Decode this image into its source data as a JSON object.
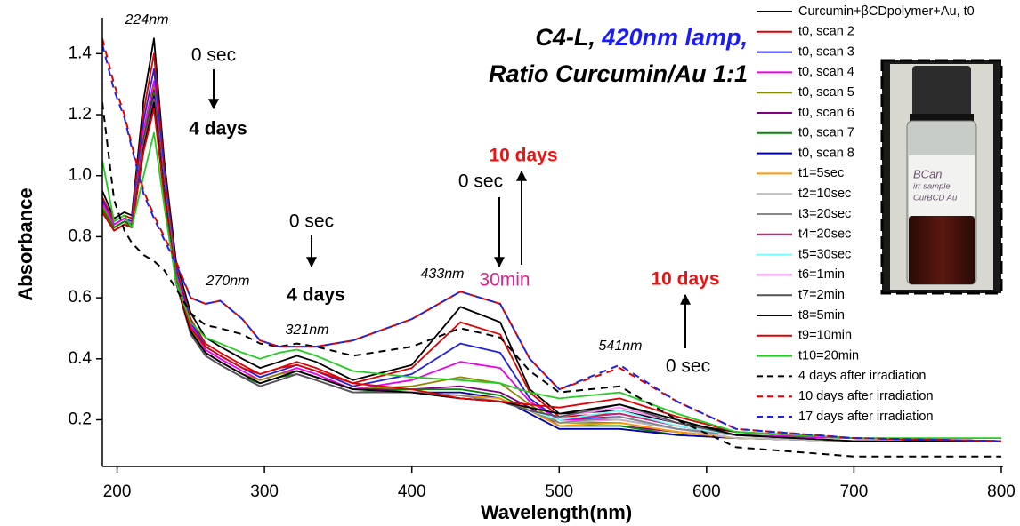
{
  "chart_data": {
    "type": "line",
    "title": [
      "C4-L,",
      "420nm lamp,",
      "Ratio Curcumin/Au 1:1"
    ],
    "title_colors": [
      "#000000",
      "#1a1aff",
      "#000000"
    ],
    "x_label": "Wavelength(nm)",
    "y_label": "Absorbance",
    "xlim": [
      190,
      800
    ],
    "xticks": [
      200,
      300,
      400,
      500,
      600,
      700,
      800
    ],
    "ylim": [
      0.05,
      1.5
    ],
    "yticks": [
      0.2,
      0.4,
      0.6,
      0.8,
      {
        "value": 1,
        "label": "1.0"
      },
      1.2,
      1.4
    ],
    "x": [
      190,
      198,
      205,
      210,
      218,
      225,
      232,
      240,
      250,
      260,
      270,
      285,
      297,
      310,
      322,
      335,
      360,
      400,
      433,
      460,
      480,
      500,
      541,
      580,
      620,
      700,
      800
    ],
    "series": [
      {
        "name": "Curcumin+βCDpolymer+Au, t0",
        "color": "#000000",
        "dash": false,
        "values": [
          0.95,
          0.86,
          0.88,
          0.87,
          1.25,
          1.45,
          1.05,
          0.72,
          0.55,
          0.47,
          0.44,
          0.4,
          0.37,
          0.39,
          0.41,
          0.39,
          0.33,
          0.38,
          0.57,
          0.52,
          0.3,
          0.22,
          0.23,
          0.19,
          0.16,
          0.14,
          0.13
        ]
      },
      {
        "name": "t0, scan 2",
        "color": "#e00000",
        "dash": false,
        "values": [
          0.93,
          0.85,
          0.87,
          0.86,
          1.21,
          1.4,
          1.02,
          0.7,
          0.53,
          0.45,
          0.42,
          0.38,
          0.35,
          0.37,
          0.39,
          0.37,
          0.32,
          0.37,
          0.52,
          0.48,
          0.29,
          0.21,
          0.22,
          0.18,
          0.15,
          0.14,
          0.13
        ]
      },
      {
        "name": "t0, scan 3",
        "color": "#2222dd",
        "dash": false,
        "values": [
          0.92,
          0.84,
          0.86,
          0.85,
          1.18,
          1.35,
          1.0,
          0.69,
          0.52,
          0.44,
          0.41,
          0.37,
          0.34,
          0.36,
          0.38,
          0.36,
          0.31,
          0.35,
          0.45,
          0.42,
          0.27,
          0.2,
          0.21,
          0.17,
          0.15,
          0.14,
          0.13
        ]
      },
      {
        "name": "t0, scan 4",
        "color": "#ee00ee",
        "dash": false,
        "values": [
          0.91,
          0.84,
          0.86,
          0.84,
          1.15,
          1.31,
          0.98,
          0.68,
          0.51,
          0.43,
          0.4,
          0.36,
          0.33,
          0.35,
          0.37,
          0.35,
          0.3,
          0.33,
          0.39,
          0.37,
          0.26,
          0.2,
          0.2,
          0.17,
          0.15,
          0.14,
          0.13
        ]
      },
      {
        "name": "t0, scan 5",
        "color": "#8a8a00",
        "dash": false,
        "values": [
          0.9,
          0.83,
          0.85,
          0.84,
          1.13,
          1.29,
          0.97,
          0.67,
          0.5,
          0.42,
          0.39,
          0.35,
          0.33,
          0.35,
          0.36,
          0.34,
          0.3,
          0.31,
          0.34,
          0.32,
          0.25,
          0.19,
          0.19,
          0.16,
          0.14,
          0.13,
          0.13
        ]
      },
      {
        "name": "t0, scan 6",
        "color": "#800080",
        "dash": false,
        "values": [
          0.89,
          0.83,
          0.85,
          0.84,
          1.12,
          1.28,
          0.96,
          0.66,
          0.49,
          0.42,
          0.39,
          0.35,
          0.32,
          0.34,
          0.36,
          0.34,
          0.3,
          0.3,
          0.31,
          0.29,
          0.24,
          0.18,
          0.18,
          0.16,
          0.14,
          0.13,
          0.13
        ]
      },
      {
        "name": "t0, scan 7",
        "color": "#008800",
        "dash": false,
        "values": [
          0.89,
          0.83,
          0.85,
          0.83,
          1.11,
          1.27,
          0.95,
          0.66,
          0.49,
          0.41,
          0.38,
          0.34,
          0.32,
          0.34,
          0.35,
          0.33,
          0.29,
          0.3,
          0.3,
          0.28,
          0.23,
          0.18,
          0.18,
          0.15,
          0.14,
          0.13,
          0.13
        ]
      },
      {
        "name": "t0, scan 8",
        "color": "#0000aa",
        "dash": false,
        "values": [
          0.88,
          0.82,
          0.84,
          0.83,
          1.1,
          1.26,
          0.95,
          0.65,
          0.48,
          0.41,
          0.38,
          0.34,
          0.31,
          0.33,
          0.35,
          0.33,
          0.29,
          0.29,
          0.29,
          0.27,
          0.22,
          0.17,
          0.17,
          0.15,
          0.14,
          0.13,
          0.13
        ]
      },
      {
        "name": "t1=5sec",
        "color": "#ff9900",
        "dash": false,
        "values": [
          0.88,
          0.82,
          0.84,
          0.83,
          1.1,
          1.25,
          0.94,
          0.65,
          0.48,
          0.41,
          0.38,
          0.34,
          0.31,
          0.33,
          0.35,
          0.33,
          0.29,
          0.29,
          0.28,
          0.27,
          0.23,
          0.18,
          0.19,
          0.16,
          0.14,
          0.13,
          0.13
        ]
      },
      {
        "name": "t2=10sec",
        "color": "#bbbbbb",
        "dash": false,
        "values": [
          0.88,
          0.82,
          0.84,
          0.83,
          1.1,
          1.25,
          0.94,
          0.65,
          0.48,
          0.41,
          0.38,
          0.34,
          0.31,
          0.33,
          0.35,
          0.33,
          0.29,
          0.29,
          0.28,
          0.26,
          0.23,
          0.19,
          0.2,
          0.17,
          0.14,
          0.13,
          0.13
        ]
      },
      {
        "name": "t3=20sec",
        "color": "#888888",
        "dash": false,
        "values": [
          0.88,
          0.82,
          0.84,
          0.83,
          1.1,
          1.25,
          0.94,
          0.65,
          0.48,
          0.41,
          0.38,
          0.34,
          0.31,
          0.33,
          0.35,
          0.33,
          0.29,
          0.29,
          0.28,
          0.26,
          0.23,
          0.19,
          0.21,
          0.17,
          0.15,
          0.13,
          0.13
        ]
      },
      {
        "name": "t4=20sec",
        "color": "#d0207a",
        "dash": false,
        "values": [
          0.88,
          0.82,
          0.84,
          0.83,
          1.1,
          1.25,
          0.94,
          0.65,
          0.48,
          0.41,
          0.38,
          0.34,
          0.31,
          0.33,
          0.35,
          0.33,
          0.29,
          0.29,
          0.27,
          0.26,
          0.23,
          0.2,
          0.22,
          0.18,
          0.15,
          0.13,
          0.13
        ]
      },
      {
        "name": "t5=30sec",
        "color": "#77ffff",
        "dash": false,
        "values": [
          0.88,
          0.82,
          0.84,
          0.83,
          1.09,
          1.24,
          0.94,
          0.65,
          0.48,
          0.41,
          0.38,
          0.34,
          0.31,
          0.33,
          0.35,
          0.33,
          0.29,
          0.29,
          0.27,
          0.26,
          0.23,
          0.2,
          0.23,
          0.18,
          0.15,
          0.13,
          0.13
        ]
      },
      {
        "name": "t6=1min",
        "color": "#ff88ff",
        "dash": false,
        "values": [
          0.88,
          0.82,
          0.84,
          0.83,
          1.09,
          1.24,
          0.94,
          0.65,
          0.48,
          0.41,
          0.38,
          0.34,
          0.31,
          0.33,
          0.35,
          0.33,
          0.29,
          0.29,
          0.27,
          0.26,
          0.23,
          0.21,
          0.24,
          0.19,
          0.15,
          0.13,
          0.13
        ]
      },
      {
        "name": "t7=2min",
        "color": "#555555",
        "dash": false,
        "values": [
          0.88,
          0.82,
          0.84,
          0.83,
          1.09,
          1.24,
          0.94,
          0.65,
          0.48,
          0.41,
          0.38,
          0.34,
          0.31,
          0.33,
          0.35,
          0.33,
          0.29,
          0.29,
          0.27,
          0.26,
          0.23,
          0.21,
          0.25,
          0.19,
          0.15,
          0.13,
          0.13
        ]
      },
      {
        "name": "t8=5min",
        "color": "#000000",
        "dash": false,
        "values": [
          0.88,
          0.82,
          0.84,
          0.83,
          1.09,
          1.24,
          0.94,
          0.65,
          0.49,
          0.42,
          0.39,
          0.35,
          0.32,
          0.34,
          0.36,
          0.34,
          0.3,
          0.29,
          0.27,
          0.26,
          0.24,
          0.22,
          0.25,
          0.2,
          0.15,
          0.13,
          0.13
        ]
      },
      {
        "name": "t9=10min",
        "color": "#e00000",
        "dash": false,
        "values": [
          0.88,
          0.82,
          0.84,
          0.83,
          1.08,
          1.22,
          0.93,
          0.65,
          0.5,
          0.44,
          0.41,
          0.37,
          0.35,
          0.37,
          0.38,
          0.36,
          0.32,
          0.3,
          0.27,
          0.26,
          0.25,
          0.24,
          0.27,
          0.21,
          0.16,
          0.14,
          0.13
        ]
      },
      {
        "name": "t10=20min",
        "color": "#22cc22",
        "dash": false,
        "values": [
          1.05,
          0.85,
          0.87,
          0.83,
          1.0,
          1.14,
          0.9,
          0.65,
          0.52,
          0.47,
          0.45,
          0.42,
          0.4,
          0.42,
          0.43,
          0.41,
          0.36,
          0.34,
          0.33,
          0.32,
          0.29,
          0.27,
          0.29,
          0.22,
          0.16,
          0.14,
          0.14
        ]
      },
      {
        "name": "4 days after irradiation",
        "color": "#000000",
        "dash": true,
        "values": [
          1.24,
          0.92,
          0.82,
          0.78,
          0.74,
          0.72,
          0.69,
          0.63,
          0.55,
          0.51,
          0.5,
          0.48,
          0.45,
          0.44,
          0.45,
          0.44,
          0.41,
          0.44,
          0.5,
          0.47,
          0.36,
          0.29,
          0.31,
          0.2,
          0.11,
          0.08,
          0.08
        ]
      },
      {
        "name": "10 days after irradiation",
        "color": "#e00000",
        "dash": true,
        "values": [
          1.45,
          1.3,
          1.2,
          1.1,
          0.95,
          0.87,
          0.8,
          0.72,
          0.6,
          0.58,
          0.59,
          0.53,
          0.46,
          0.44,
          0.44,
          0.44,
          0.46,
          0.53,
          0.62,
          0.58,
          0.4,
          0.3,
          0.37,
          0.26,
          0.17,
          0.14,
          0.13
        ]
      },
      {
        "name": "17 days after irradiation",
        "color": "#2222dd",
        "dash": true,
        "values": [
          1.43,
          1.28,
          1.19,
          1.09,
          0.94,
          0.86,
          0.79,
          0.71,
          0.6,
          0.58,
          0.59,
          0.53,
          0.46,
          0.44,
          0.44,
          0.44,
          0.46,
          0.53,
          0.62,
          0.58,
          0.4,
          0.3,
          0.38,
          0.26,
          0.17,
          0.14,
          0.13
        ]
      }
    ],
    "annotations": [
      {
        "text": "224nm",
        "color": "#000000"
      },
      {
        "text": "0 sec",
        "color": "#000000"
      },
      {
        "text": "4 days",
        "color": "#000000"
      },
      {
        "text": "270nm",
        "color": "#000000"
      },
      {
        "text": "321nm",
        "color": "#000000"
      },
      {
        "text": "0 sec",
        "color": "#000000"
      },
      {
        "text": "4 days",
        "color": "#000000"
      },
      {
        "text": "433nm",
        "color": "#000000"
      },
      {
        "text": "30min",
        "color": "#e0208a"
      },
      {
        "text": "0 sec",
        "color": "#000000"
      },
      {
        "text": "10 days",
        "color": "#ee1111"
      },
      {
        "text": "541nm",
        "color": "#000000"
      },
      {
        "text": "0 sec",
        "color": "#000000"
      },
      {
        "text": "10 days",
        "color": "#ee1111"
      }
    ],
    "photo_label": [
      "BCan",
      "irr sample",
      "CurBCD Au"
    ]
  }
}
